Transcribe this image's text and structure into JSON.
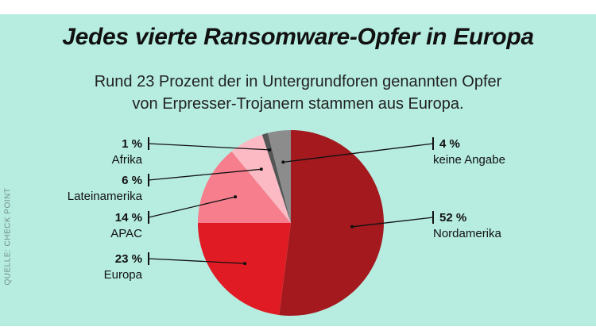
{
  "title": "Jedes vierte Ransomware-Opfer in Europa",
  "subtitle_line1": "Rund 23 Prozent der in Untergrundforen genannten Opfer",
  "subtitle_line2": "von Erpresser-Trojanern stammen aus Europa.",
  "source": "QUELLE: CHECK POINT",
  "chart_data": {
    "type": "pie",
    "title": "Jedes vierte Ransomware-Opfer in Europa",
    "unit": "%",
    "start": "12 o'clock, clockwise",
    "slices": [
      {
        "label": "Nordamerika",
        "value": 52,
        "display": "52 %",
        "color": "#a3191e",
        "side": "right"
      },
      {
        "label": "Europa",
        "value": 23,
        "display": "23 %",
        "color": "#e01b24",
        "side": "left"
      },
      {
        "label": "APAC",
        "value": 14,
        "display": "14 %",
        "color": "#f77e8d",
        "side": "left"
      },
      {
        "label": "Lateinamerika",
        "value": 6,
        "display": "6 %",
        "color": "#fbbac4",
        "side": "left"
      },
      {
        "label": "Afrika",
        "value": 1,
        "display": "1 %",
        "color": "#555555",
        "side": "left"
      },
      {
        "label": "keine Angabe",
        "value": 4,
        "display": "4 %",
        "color": "#8c8c8c",
        "side": "right"
      }
    ]
  }
}
